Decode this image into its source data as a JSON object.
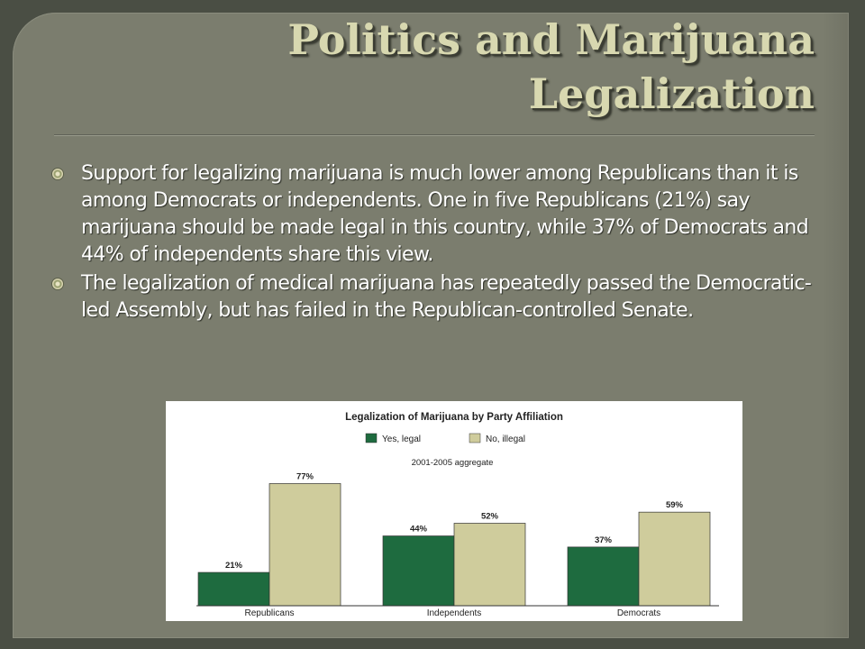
{
  "slide": {
    "title": "Politics and Marijuana Legalization",
    "bullets": [
      "Support for legalizing marijuana is much lower among Republicans than it is among Democrats or independents. One in five Republicans (21%) say marijuana should be made legal in this country, while 37% of Democrats and 44% of independents share this view.",
      "The legalization of medical marijuana has repeatedly passed the Democratic-led Assembly, but has failed in the Republican-controlled Senate."
    ]
  },
  "colors": {
    "background": "#4a4e44",
    "panel": "#7b7d6e",
    "title": "#d8d8b0",
    "yes": "#1e6b3f",
    "no": "#cfcc9c"
  },
  "chart_data": {
    "type": "bar",
    "title": "Legalization of Marijuana by Party Affiliation",
    "subtitle": "2001-2005 aggregate",
    "categories": [
      "Republicans",
      "Independents",
      "Democrats"
    ],
    "series": [
      {
        "name": "Yes, legal",
        "values": [
          21,
          44,
          37
        ],
        "labels": [
          "21%",
          "44%",
          "37%"
        ]
      },
      {
        "name": "No, illegal",
        "values": [
          77,
          52,
          59
        ],
        "labels": [
          "77%",
          "52%",
          "59%"
        ]
      }
    ],
    "ylim": [
      0,
      100
    ],
    "legend": "top-center",
    "grid": false
  }
}
